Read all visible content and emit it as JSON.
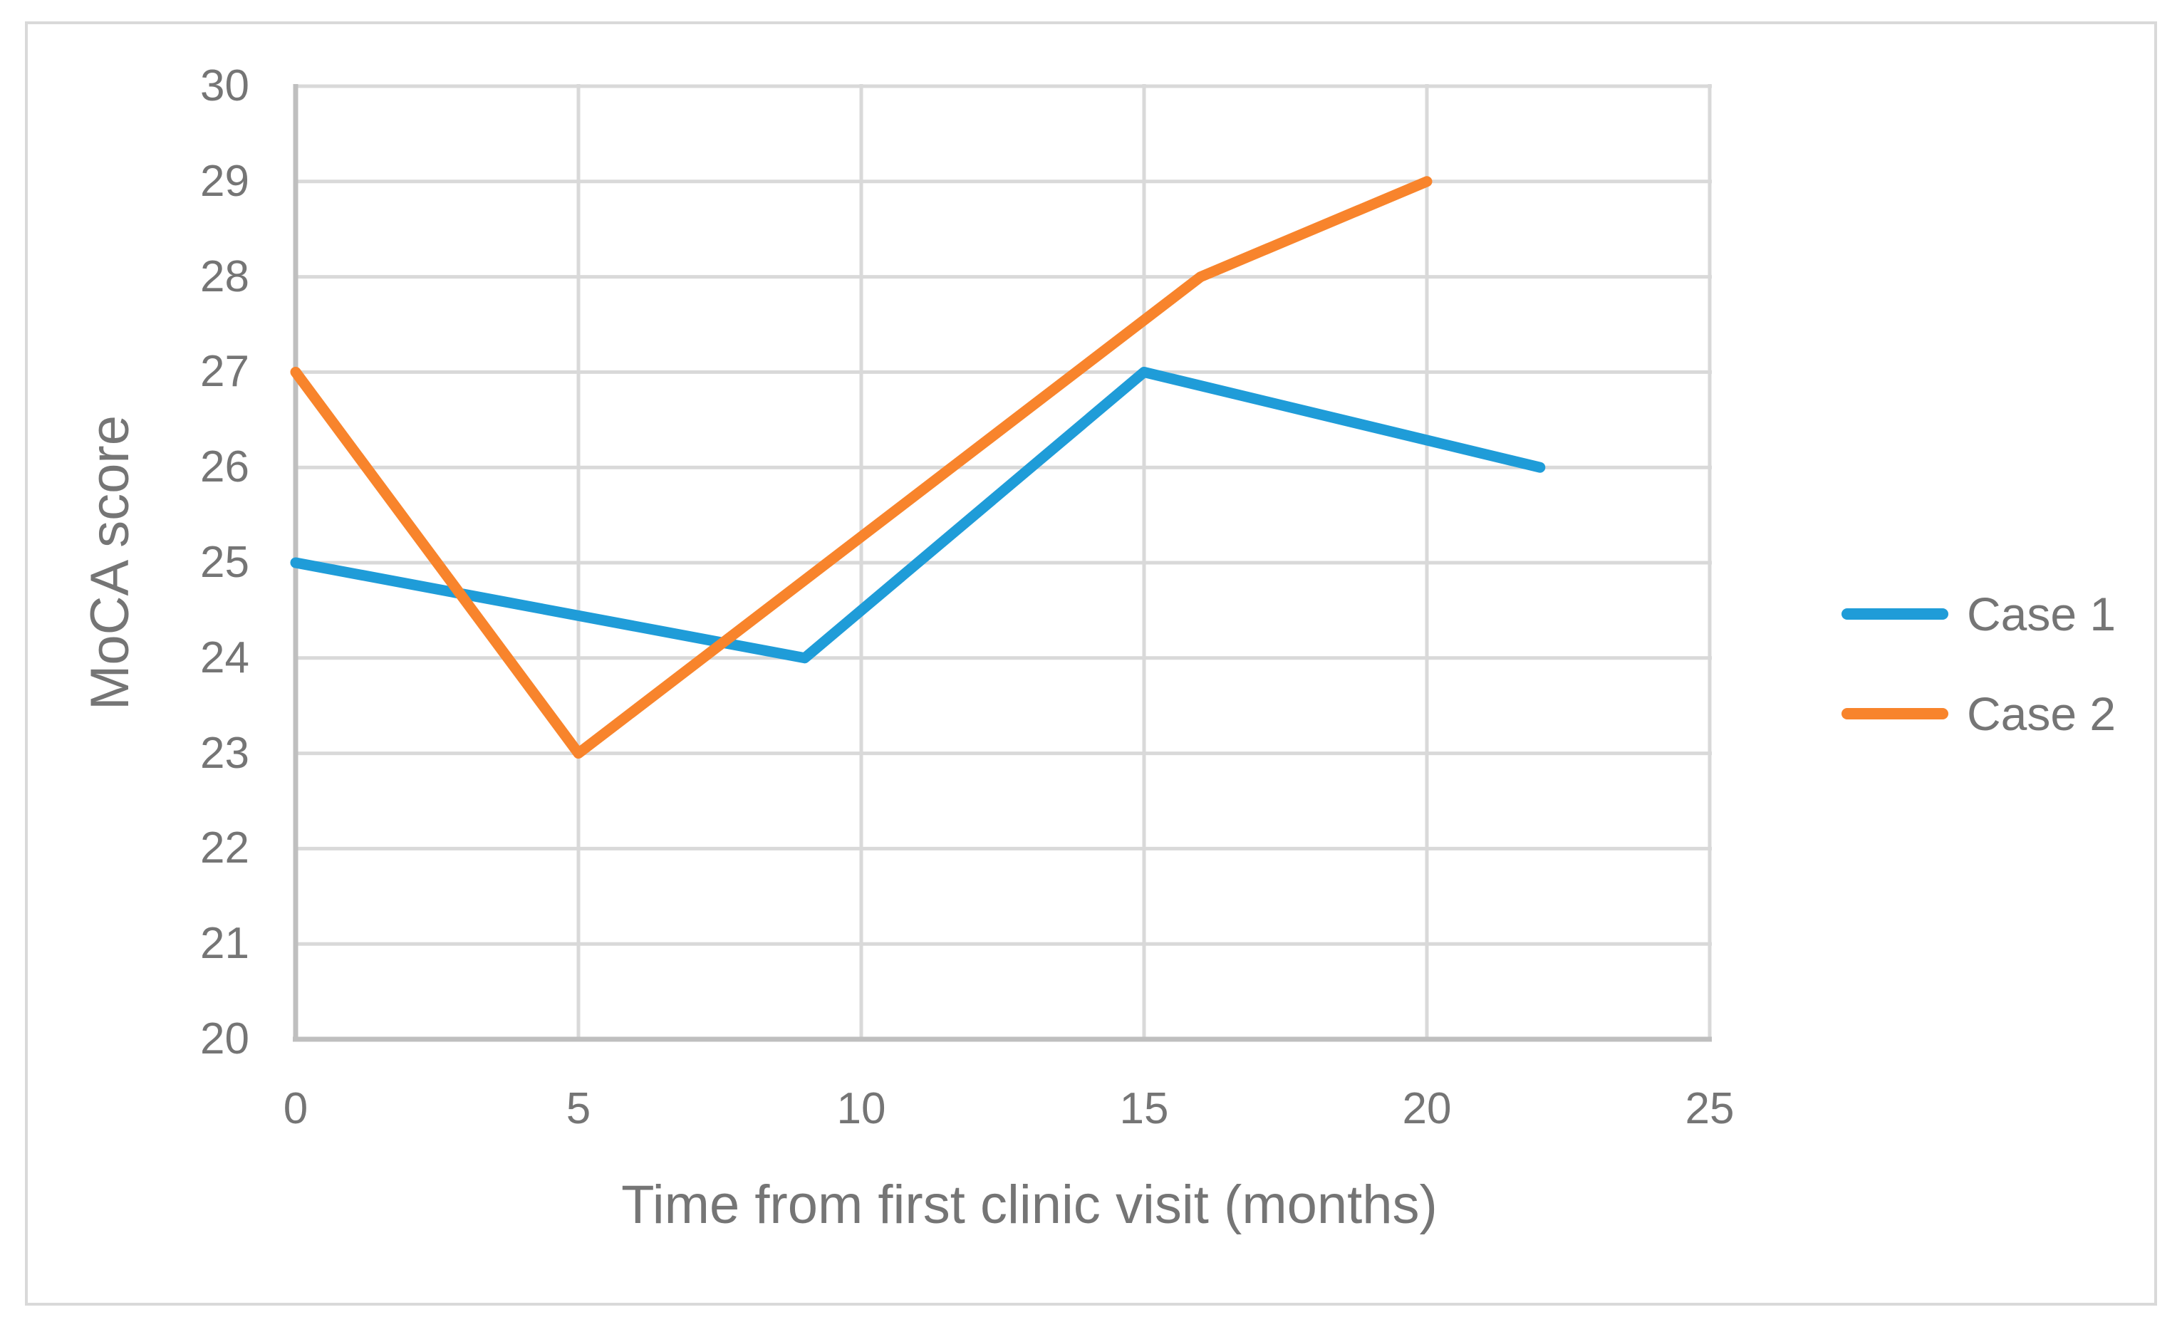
{
  "chart_data": {
    "type": "line",
    "title": "",
    "xlabel": "Time from first clinic visit (months)",
    "ylabel": "MoCA score",
    "xlim": [
      0,
      25
    ],
    "ylim": [
      20,
      30
    ],
    "x_ticks": [
      0,
      5,
      10,
      15,
      20,
      25
    ],
    "y_ticks": [
      20,
      21,
      22,
      23,
      24,
      25,
      26,
      27,
      28,
      29,
      30
    ],
    "grid": true,
    "legend_position": "right",
    "series": [
      {
        "name": "Case 1",
        "color": "#1F9CD8",
        "points": [
          [
            0,
            25
          ],
          [
            9,
            24
          ],
          [
            15,
            27
          ],
          [
            22,
            26
          ]
        ]
      },
      {
        "name": "Case 2",
        "color": "#F8842C",
        "points": [
          [
            0,
            27
          ],
          [
            5,
            23
          ],
          [
            16,
            28
          ],
          [
            20,
            29
          ]
        ]
      }
    ]
  },
  "colors": {
    "case1_line": "#1F9CD8",
    "case2_line": "#F8842C",
    "gridline": "#D9D9D9",
    "axis_line": "#BFBFBF",
    "text": "#757575",
    "frame_border": "#D9D9D9",
    "background": "#FFFFFF"
  }
}
